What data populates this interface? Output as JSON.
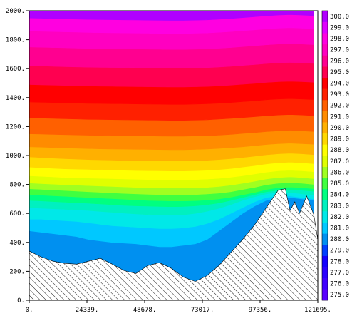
{
  "chart_data": {
    "type": "heatmap",
    "subtype": "filled-contour cross-section with terrain",
    "title": "",
    "xlabel": "",
    "ylabel": "",
    "xlim": [
      0,
      121695
    ],
    "ylim": [
      0,
      2000
    ],
    "x_ticks": [
      "0.",
      "24339.",
      "48678.",
      "73017.",
      "97356.",
      "121695."
    ],
    "y_ticks": [
      "0.",
      "200.",
      "400.",
      "600.",
      "800.",
      "1000.",
      "1200.",
      "1400.",
      "1600.",
      "1800.",
      "2000."
    ],
    "colorbar": {
      "levels": [
        "275.0",
        "276.0",
        "277.0",
        "278.0",
        "279.0",
        "280.0",
        "281.0",
        "282.0",
        "283.0",
        "284.0",
        "285.0",
        "286.0",
        "287.0",
        "288.0",
        "289.0",
        "290.0",
        "291.0",
        "292.0",
        "293.0",
        "294.0",
        "295.0",
        "296.0",
        "297.0",
        "298.0",
        "299.0",
        "300.0"
      ],
      "colors": [
        "#5a00ff",
        "#4000ff",
        "#2a00ff",
        "#1400ff",
        "#0040ff",
        "#0090f0",
        "#00c8ff",
        "#00e8e8",
        "#00f0c0",
        "#00ff80",
        "#40ff40",
        "#a0ff20",
        "#e0ff00",
        "#ffff00",
        "#ffd800",
        "#ffb000",
        "#ff8c00",
        "#ff6000",
        "#ff2000",
        "#ff0000",
        "#ff0050",
        "#ff0090",
        "#ff00c0",
        "#ff00e0",
        "#e000ff",
        "#b000ff"
      ]
    },
    "isotherms_z": {
      "x": [
        0,
        5000,
        10000,
        15000,
        20000,
        25000,
        30000,
        35000,
        40000,
        45000,
        50000,
        55000,
        60000,
        65000,
        70000,
        75000,
        80000,
        85000,
        90000,
        95000,
        100000,
        105000,
        110000,
        115000,
        120000
      ],
      "levels": [
        281,
        282,
        283,
        284,
        285,
        286,
        287,
        288,
        289,
        290,
        291,
        292,
        293,
        294,
        295,
        296,
        297,
        298,
        299
      ],
      "heights": [
        [
          480,
          470,
          460,
          450,
          440,
          420,
          410,
          400,
          395,
          390,
          380,
          370,
          370,
          380,
          390,
          420,
          480,
          540,
          600,
          650,
          690,
          700,
          710,
          700,
          690
        ],
        [
          560,
          560,
          555,
          550,
          545,
          535,
          525,
          515,
          510,
          505,
          500,
          495,
          495,
          500,
          510,
          530,
          560,
          600,
          640,
          680,
          710,
          720,
          720,
          710,
          700
        ],
        [
          640,
          636,
          632,
          628,
          624,
          620,
          614,
          608,
          602,
          596,
          592,
          590,
          588,
          590,
          600,
          615,
          635,
          660,
          690,
          715,
          735,
          745,
          745,
          735,
          725
        ],
        [
          690,
          686,
          682,
          678,
          674,
          670,
          665,
          660,
          655,
          652,
          650,
          648,
          647,
          648,
          652,
          660,
          672,
          690,
          710,
          730,
          750,
          760,
          765,
          760,
          752
        ],
        [
          730,
          726,
          722,
          718,
          714,
          710,
          706,
          702,
          698,
          694,
          690,
          688,
          686,
          686,
          688,
          692,
          700,
          712,
          728,
          745,
          765,
          778,
          782,
          778,
          770
        ],
        [
          770,
          766,
          762,
          758,
          754,
          750,
          746,
          742,
          738,
          735,
          732,
          730,
          728,
          728,
          730,
          734,
          740,
          750,
          765,
          780,
          798,
          808,
          812,
          808,
          800
        ],
        [
          810,
          806,
          802,
          798,
          795,
          792,
          789,
          786,
          783,
          780,
          778,
          776,
          775,
          775,
          777,
          780,
          786,
          795,
          808,
          822,
          838,
          848,
          852,
          848,
          840
        ],
        [
          860,
          856,
          852,
          848,
          846,
          844,
          842,
          840,
          838,
          836,
          834,
          833,
          832,
          832,
          834,
          837,
          842,
          850,
          860,
          872,
          885,
          894,
          898,
          894,
          888
        ],
        [
          920,
          916,
          912,
          908,
          906,
          904,
          902,
          900,
          898,
          896,
          895,
          894,
          893,
          893,
          895,
          898,
          903,
          910,
          920,
          930,
          942,
          950,
          954,
          950,
          944
        ],
        [
          990,
          986,
          982,
          978,
          975,
          972,
          970,
          968,
          966,
          965,
          964,
          963,
          962,
          962,
          964,
          967,
          972,
          978,
          986,
          995,
          1005,
          1012,
          1016,
          1012,
          1006
        ],
        [
          1060,
          1058,
          1055,
          1052,
          1050,
          1048,
          1046,
          1045,
          1044,
          1043,
          1042,
          1041,
          1040,
          1040,
          1042,
          1045,
          1049,
          1054,
          1060,
          1068,
          1076,
          1082,
          1085,
          1082,
          1078
        ],
        [
          1150,
          1148,
          1146,
          1144,
          1142,
          1140,
          1139,
          1138,
          1137,
          1136,
          1135,
          1134,
          1133,
          1133,
          1135,
          1137,
          1141,
          1146,
          1152,
          1158,
          1165,
          1170,
          1173,
          1170,
          1166
        ],
        [
          1260,
          1258,
          1256,
          1254,
          1252,
          1250,
          1249,
          1248,
          1247,
          1246,
          1245,
          1244,
          1243,
          1243,
          1245,
          1247,
          1251,
          1256,
          1262,
          1268,
          1275,
          1280,
          1283,
          1280,
          1276
        ],
        [
          1370,
          1368,
          1366,
          1364,
          1362,
          1360,
          1359,
          1358,
          1357,
          1356,
          1355,
          1354,
          1353,
          1353,
          1355,
          1357,
          1361,
          1366,
          1372,
          1378,
          1385,
          1390,
          1393,
          1390,
          1386
        ],
        [
          1490,
          1488,
          1486,
          1484,
          1482,
          1480,
          1479,
          1478,
          1477,
          1476,
          1475,
          1474,
          1473,
          1473,
          1475,
          1477,
          1481,
          1486,
          1492,
          1498,
          1505,
          1510,
          1513,
          1510,
          1506
        ],
        [
          1620,
          1618,
          1616,
          1614,
          1612,
          1610,
          1609,
          1608,
          1607,
          1606,
          1605,
          1604,
          1603,
          1603,
          1605,
          1607,
          1611,
          1616,
          1622,
          1628,
          1635,
          1640,
          1643,
          1640,
          1636
        ],
        [
          1750,
          1748,
          1746,
          1744,
          1742,
          1740,
          1739,
          1738,
          1737,
          1736,
          1735,
          1734,
          1733,
          1733,
          1735,
          1737,
          1741,
          1746,
          1752,
          1758,
          1765,
          1770,
          1773,
          1770,
          1766
        ],
        [
          1860,
          1858,
          1856,
          1854,
          1852,
          1850,
          1849,
          1848,
          1847,
          1846,
          1845,
          1844,
          1843,
          1843,
          1845,
          1847,
          1851,
          1856,
          1862,
          1868,
          1875,
          1880,
          1883,
          1880,
          1876
        ],
        [
          1950,
          1948,
          1946,
          1944,
          1942,
          1940,
          1939,
          1938,
          1937,
          1936,
          1935,
          1934,
          1933,
          1933,
          1935,
          1937,
          1941,
          1946,
          1952,
          1958,
          1965,
          1970,
          1973,
          1970,
          1966
        ]
      ]
    },
    "terrain": {
      "x": [
        0,
        5000,
        10000,
        15000,
        20000,
        25000,
        30000,
        35000,
        40000,
        45000,
        50000,
        55000,
        60000,
        65000,
        70000,
        75000,
        80000,
        85000,
        90000,
        95000,
        100000,
        105000,
        108000,
        110000,
        112000,
        114000,
        117000,
        120000,
        121695
      ],
      "z": [
        340,
        300,
        270,
        255,
        250,
        270,
        290,
        250,
        205,
        185,
        240,
        260,
        220,
        160,
        130,
        170,
        240,
        330,
        420,
        520,
        640,
        760,
        770,
        620,
        680,
        600,
        720,
        590,
        420
      ]
    }
  }
}
